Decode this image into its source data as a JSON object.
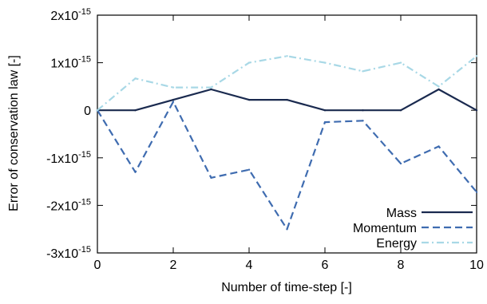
{
  "chart_data": {
    "type": "line",
    "xlabel": "Number of time-step [-]",
    "ylabel": "Error of conservation law [-]",
    "xlim": [
      0,
      10
    ],
    "ylim": [
      -3e-15,
      2e-15
    ],
    "xticks": [
      0,
      2,
      4,
      6,
      8,
      10
    ],
    "xtick_labels": [
      "0",
      "2",
      "4",
      "6",
      "8",
      "10"
    ],
    "yticks": [
      {
        "value": 2e-15,
        "mantissa": "2x10",
        "exp": "-15"
      },
      {
        "value": 1e-15,
        "mantissa": "1x10",
        "exp": "-15"
      },
      {
        "value": 0,
        "mantissa": "0",
        "exp": ""
      },
      {
        "value": -1e-15,
        "mantissa": "-1x10",
        "exp": "-15"
      },
      {
        "value": -2e-15,
        "mantissa": "-2x10",
        "exp": "-15"
      },
      {
        "value": -3e-15,
        "mantissa": "-3x10",
        "exp": "-15"
      }
    ],
    "grid": false,
    "legend_position": "bottom-right",
    "x": [
      0,
      1,
      2,
      3,
      4,
      5,
      6,
      7,
      8,
      9,
      10
    ],
    "series": [
      {
        "name": "Mass",
        "color": "#1a2a4f",
        "dash": "solid",
        "values": [
          0,
          0,
          2.2e-16,
          4.4e-16,
          2.2e-16,
          2.2e-16,
          0,
          0,
          0,
          4.4e-16,
          0
        ]
      },
      {
        "name": "Momentum",
        "color": "#3f6cb0",
        "dash": "dashed",
        "values": [
          0,
          -1.3e-15,
          1.8e-16,
          -1.42e-15,
          -1.25e-15,
          -2.5e-15,
          -2.5e-16,
          -2.2e-16,
          -1.12e-15,
          -7.6e-16,
          -1.72e-15
        ]
      },
      {
        "name": "Energy",
        "color": "#a8d8e6",
        "dash": "dash-dot",
        "values": [
          0,
          6.7e-16,
          4.8e-16,
          4.8e-16,
          1e-15,
          1.14e-15,
          1e-15,
          8.2e-16,
          1e-15,
          5e-16,
          1.14e-15
        ]
      }
    ]
  }
}
